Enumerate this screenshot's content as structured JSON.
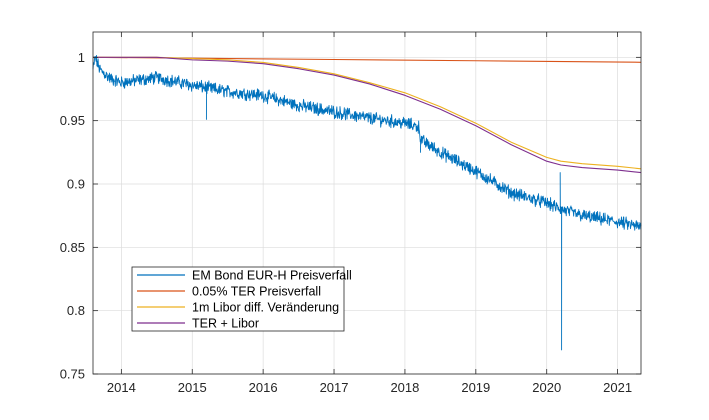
{
  "chart_data": {
    "type": "line",
    "title": "",
    "xlabel": "",
    "ylabel": "",
    "xlim": [
      2013.6,
      2021.33
    ],
    "ylim": [
      0.75,
      1.02
    ],
    "grid": true,
    "legend_position": "bottom-left",
    "x_ticks": [
      2014,
      2015,
      2016,
      2017,
      2018,
      2019,
      2020,
      2021
    ],
    "x_tick_labels": [
      "2014",
      "2015",
      "2016",
      "2017",
      "2018",
      "2019",
      "2020",
      "2021"
    ],
    "y_ticks": [
      0.75,
      0.8,
      0.85,
      0.9,
      0.95,
      1
    ],
    "y_tick_labels": [
      "0.75",
      "0.8",
      "0.85",
      "0.9",
      "0.95",
      "1"
    ],
    "series": [
      {
        "name": "EM Bond EUR-H Preisverfall",
        "color": "#0072BD",
        "noise": 0.004,
        "x": [
          2013.6,
          2013.63,
          2013.7,
          2013.85,
          2014.0,
          2014.5,
          2015.0,
          2015.5,
          2016.0,
          2016.5,
          2017.0,
          2017.5,
          2018.0,
          2018.2,
          2018.22,
          2018.5,
          2019.0,
          2019.5,
          2020.0,
          2020.2,
          2020.5,
          2021.0,
          2021.33
        ],
        "y": [
          0.99,
          1.0,
          0.99,
          0.983,
          0.98,
          0.984,
          0.978,
          0.973,
          0.97,
          0.962,
          0.957,
          0.952,
          0.948,
          0.945,
          0.935,
          0.925,
          0.91,
          0.893,
          0.885,
          0.88,
          0.875,
          0.87,
          0.866
        ],
        "spikes": [
          {
            "x": 2015.2,
            "y": 0.951
          },
          {
            "x": 2018.22,
            "y": 0.925
          },
          {
            "x": 2020.19,
            "y": 0.909
          },
          {
            "x": 2020.21,
            "y": 0.769
          }
        ]
      },
      {
        "name": "0.05% TER Preisverfall",
        "color": "#D95319",
        "x": [
          2013.6,
          2015.0,
          2017.0,
          2019.0,
          2021.33
        ],
        "y": [
          1.0,
          0.9993,
          0.9983,
          0.9973,
          0.9961
        ]
      },
      {
        "name": "1m Libor diff. Veränderung",
        "color": "#EDB120",
        "x": [
          2013.6,
          2014.5,
          2015.0,
          2015.5,
          2016.0,
          2016.5,
          2017.0,
          2017.5,
          2018.0,
          2018.5,
          2019.0,
          2019.5,
          2020.0,
          2020.2,
          2020.5,
          2021.0,
          2021.33
        ],
        "y": [
          1.0,
          1.0,
          0.999,
          0.998,
          0.996,
          0.992,
          0.987,
          0.98,
          0.972,
          0.961,
          0.948,
          0.933,
          0.921,
          0.918,
          0.916,
          0.914,
          0.912
        ],
        "noise": 0
      },
      {
        "name": "TER + Libor",
        "color": "#7E2F8E",
        "x": [
          2013.6,
          2014.5,
          2015.0,
          2015.5,
          2016.0,
          2016.5,
          2017.0,
          2017.5,
          2018.0,
          2018.5,
          2019.0,
          2019.5,
          2020.0,
          2020.2,
          2020.5,
          2021.0,
          2021.33
        ],
        "y": [
          1.0,
          1.0,
          0.998,
          0.997,
          0.995,
          0.991,
          0.986,
          0.979,
          0.97,
          0.959,
          0.946,
          0.931,
          0.918,
          0.915,
          0.913,
          0.911,
          0.909
        ],
        "noise": 0
      }
    ]
  }
}
